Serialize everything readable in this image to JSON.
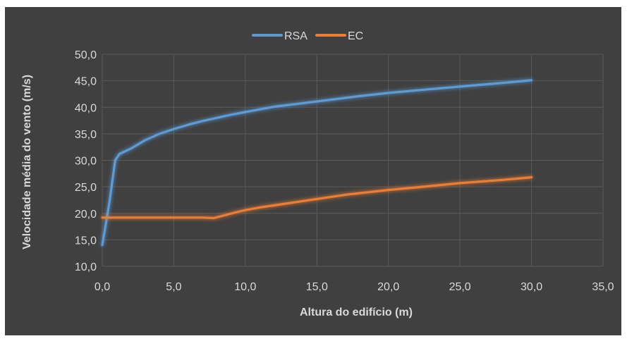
{
  "chart_data": {
    "type": "line",
    "title": "",
    "xlabel": "Altura do edifício (m)",
    "ylabel": "Velocidade média do vento (m/s)",
    "xlim": [
      0,
      35
    ],
    "ylim": [
      10,
      50
    ],
    "x_ticks": [
      "0,0",
      "5,0",
      "10,0",
      "15,0",
      "20,0",
      "25,0",
      "30,0",
      "35,0"
    ],
    "y_ticks": [
      "10,0",
      "15,0",
      "20,0",
      "25,0",
      "30,0",
      "35,0",
      "40,0",
      "45,0",
      "50,0"
    ],
    "grid": true,
    "legend_position": "top",
    "series": [
      {
        "name": "RSA",
        "color": "#5b9bd5",
        "x": [
          0,
          0.5,
          0.9,
          1.2,
          2,
          3,
          4,
          5,
          6,
          7,
          8,
          9,
          10,
          12,
          15,
          18,
          20,
          22,
          25,
          28,
          30
        ],
        "y": [
          14,
          22,
          30,
          31.2,
          32.2,
          33.8,
          35,
          35.9,
          36.7,
          37.4,
          38,
          38.6,
          39.1,
          40.1,
          41.1,
          42.1,
          42.7,
          43.2,
          43.9,
          44.6,
          45.1
        ]
      },
      {
        "name": "EC",
        "color": "#ed7d31",
        "x": [
          0,
          1,
          3,
          5,
          7,
          7.8,
          8.5,
          9.5,
          10,
          11,
          12,
          13,
          15,
          17,
          20,
          22,
          25,
          28,
          30
        ],
        "y": [
          19.2,
          19.2,
          19.2,
          19.2,
          19.2,
          19.1,
          19.6,
          20.3,
          20.6,
          21.1,
          21.5,
          21.9,
          22.7,
          23.5,
          24.4,
          24.9,
          25.7,
          26.3,
          26.8
        ]
      }
    ]
  }
}
